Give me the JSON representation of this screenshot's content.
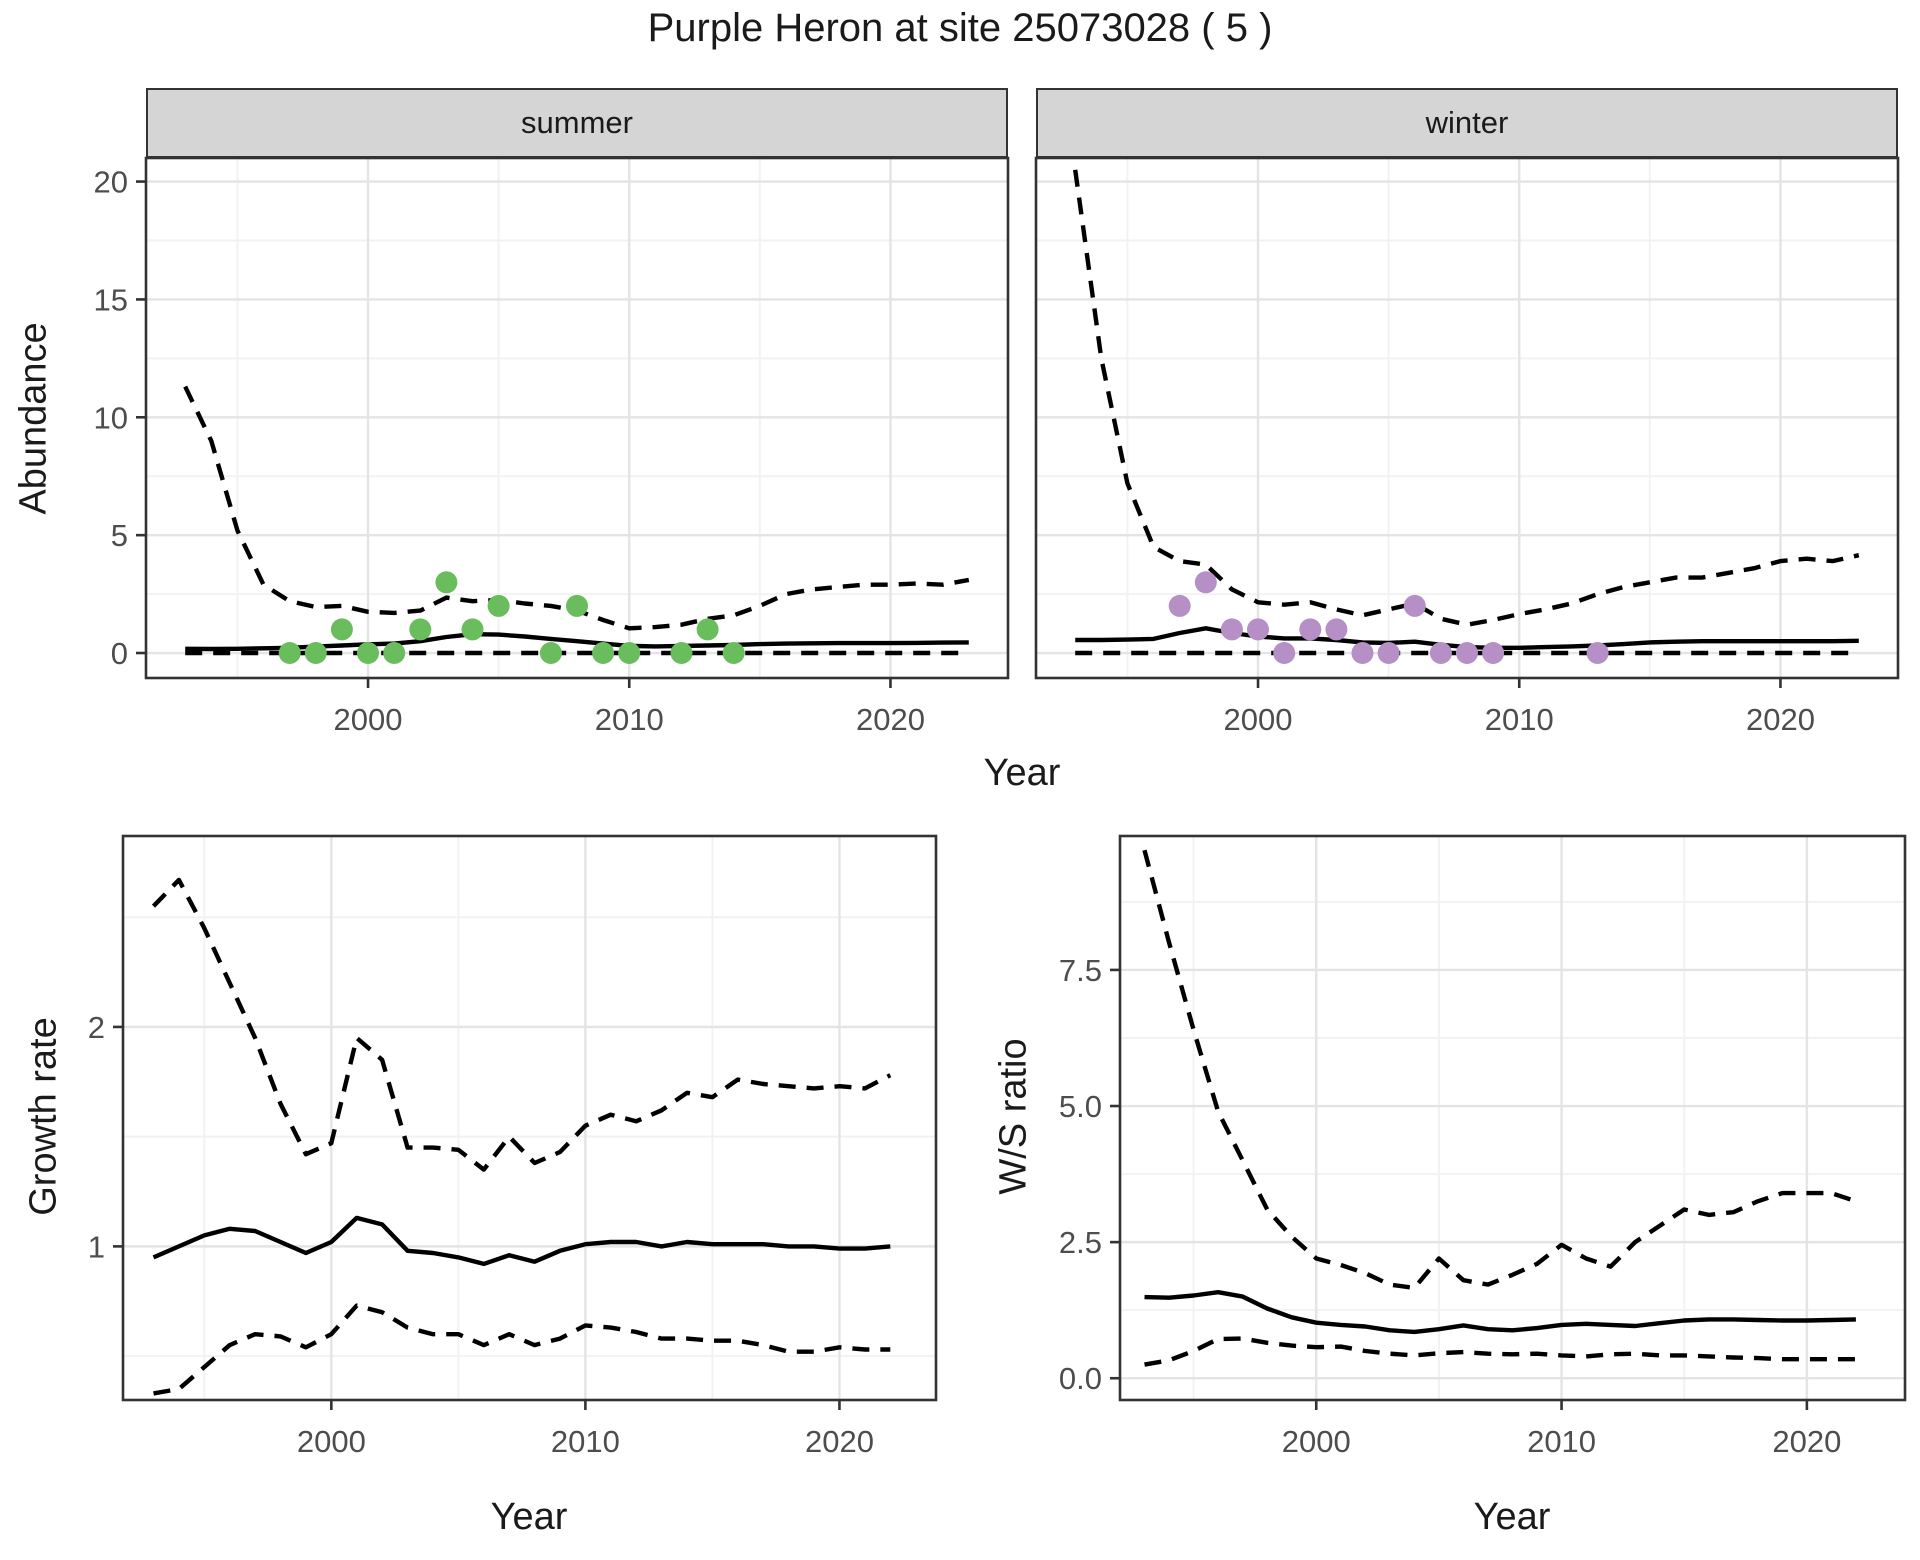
{
  "title": "Purple Heron at site 25073028 ( 5 )",
  "colors": {
    "summer_point": "#6ABD5D",
    "winter_point": "#B58FC6",
    "line": "#000000",
    "panel_border": "#333333",
    "grid_major": "#e4e4e4",
    "grid_minor": "#f2f2f2",
    "tick_mark": "#333333",
    "tick_label": "#4d4d4d",
    "strip_fill": "#d5d5d5",
    "text": "#1a1a1a"
  },
  "chart_data": [
    {
      "type": "line",
      "facet": "summer",
      "xlabel": "Year",
      "ylabel": "Abundance",
      "xlim": [
        1991.5,
        2024.5
      ],
      "ylim": [
        -1.06,
        21.0
      ],
      "x_ticks": {
        "values": [
          2000,
          2010,
          2020
        ],
        "labels": [
          "2000",
          "2010",
          "2020"
        ]
      },
      "y_ticks": {
        "values": [
          0,
          5,
          10,
          15,
          20
        ],
        "labels": [
          "0",
          "5",
          "10",
          "15",
          "20"
        ]
      },
      "x_minor": [
        1995,
        2005,
        2015
      ],
      "y_minor": [
        2.5,
        7.5,
        12.5,
        17.5
      ],
      "x": [
        1993,
        1994,
        1995,
        1996,
        1997,
        1998,
        1999,
        2000,
        2001,
        2002,
        2003,
        2004,
        2005,
        2006,
        2007,
        2008,
        2009,
        2010,
        2011,
        2012,
        2013,
        2014,
        2015,
        2016,
        2017,
        2018,
        2019,
        2020,
        2021,
        2022,
        2023
      ],
      "series": [
        {
          "name": "upper_95ci",
          "style": "dashed",
          "values": [
            11.3,
            9.0,
            5.2,
            2.9,
            2.2,
            1.95,
            2.0,
            1.75,
            1.7,
            1.8,
            2.35,
            2.2,
            2.25,
            2.1,
            2.0,
            1.8,
            1.4,
            1.05,
            1.1,
            1.2,
            1.45,
            1.6,
            2.0,
            2.5,
            2.7,
            2.8,
            2.9,
            2.9,
            2.95,
            2.9,
            3.1
          ]
        },
        {
          "name": "mean",
          "style": "solid",
          "values": [
            0.18,
            0.17,
            0.18,
            0.2,
            0.22,
            0.27,
            0.32,
            0.37,
            0.4,
            0.5,
            0.68,
            0.8,
            0.78,
            0.7,
            0.6,
            0.5,
            0.4,
            0.3,
            0.28,
            0.3,
            0.32,
            0.34,
            0.38,
            0.4,
            0.41,
            0.42,
            0.42,
            0.42,
            0.43,
            0.44,
            0.45
          ]
        },
        {
          "name": "lower_95ci",
          "style": "dashed",
          "values": [
            0,
            0,
            0,
            0,
            0,
            0,
            0,
            0,
            0,
            0,
            0,
            0,
            0,
            0,
            0,
            0,
            0,
            0,
            0,
            0,
            0,
            0,
            0,
            0,
            0,
            0,
            0,
            0,
            0,
            0,
            0
          ]
        }
      ],
      "points": {
        "name": "observed_counts",
        "color": "#6ABD5D",
        "x": [
          1997,
          1998,
          1999,
          2000,
          2001,
          2002,
          2003,
          2004,
          2005,
          2007,
          2008,
          2009,
          2010,
          2012,
          2013,
          2014
        ],
        "y": [
          0,
          0,
          1,
          0,
          0,
          1,
          3,
          1,
          2,
          0,
          2,
          0,
          0,
          0,
          1,
          0
        ]
      }
    },
    {
      "type": "line",
      "facet": "winter",
      "xlabel": "Year",
      "ylabel": "Abundance",
      "xlim": [
        1991.5,
        2024.5
      ],
      "ylim": [
        -1.06,
        21.0
      ],
      "x_ticks": {
        "values": [
          2000,
          2010,
          2020
        ],
        "labels": [
          "2000",
          "2010",
          "2020"
        ]
      },
      "y_ticks": {
        "values": [
          0,
          5,
          10,
          15,
          20
        ],
        "labels": [
          "0",
          "5",
          "10",
          "15",
          "20"
        ]
      },
      "x_minor": [
        1995,
        2005,
        2015
      ],
      "y_minor": [
        2.5,
        7.5,
        12.5,
        17.5
      ],
      "x": [
        1993,
        1994,
        1995,
        1996,
        1997,
        1998,
        1999,
        2000,
        2001,
        2002,
        2003,
        2004,
        2005,
        2006,
        2007,
        2008,
        2009,
        2010,
        2011,
        2012,
        2013,
        2014,
        2015,
        2016,
        2017,
        2018,
        2019,
        2020,
        2021,
        2022,
        2023
      ],
      "series": [
        {
          "name": "upper_95ci",
          "style": "dashed",
          "values": [
            20.5,
            12.5,
            7.2,
            4.5,
            3.9,
            3.75,
            2.7,
            2.15,
            2.05,
            2.15,
            1.85,
            1.6,
            1.85,
            2.1,
            1.45,
            1.2,
            1.4,
            1.65,
            1.85,
            2.1,
            2.5,
            2.8,
            3.0,
            3.2,
            3.2,
            3.4,
            3.6,
            3.9,
            4.0,
            3.9,
            4.15
          ]
        },
        {
          "name": "mean",
          "style": "solid",
          "values": [
            0.55,
            0.55,
            0.57,
            0.6,
            0.85,
            1.05,
            0.85,
            0.7,
            0.62,
            0.62,
            0.55,
            0.45,
            0.43,
            0.48,
            0.35,
            0.25,
            0.22,
            0.22,
            0.25,
            0.28,
            0.32,
            0.38,
            0.45,
            0.48,
            0.5,
            0.5,
            0.5,
            0.5,
            0.5,
            0.5,
            0.52
          ]
        },
        {
          "name": "lower_95ci",
          "style": "dashed",
          "values": [
            0,
            0,
            0,
            0,
            0,
            0,
            0,
            0,
            0,
            0,
            0,
            0,
            0,
            0,
            0,
            0,
            0,
            0,
            0,
            0,
            0,
            0,
            0,
            0,
            0,
            0,
            0,
            0,
            0,
            0,
            0
          ]
        }
      ],
      "points": {
        "name": "observed_counts",
        "color": "#B58FC6",
        "x": [
          1997,
          1998,
          1999,
          2000,
          2001,
          2002,
          2003,
          2004,
          2005,
          2006,
          2007,
          2008,
          2009,
          2013
        ],
        "y": [
          2,
          3,
          1,
          1,
          0,
          1,
          1,
          0,
          0,
          2,
          0,
          0,
          0,
          0
        ]
      }
    },
    {
      "type": "line",
      "facet": "",
      "xlabel": "Year",
      "ylabel": "Growth rate",
      "xlim": [
        1991.8,
        2023.8
      ],
      "ylim": [
        0.3,
        2.87
      ],
      "x_ticks": {
        "values": [
          2000,
          2010,
          2020
        ],
        "labels": [
          "2000",
          "2010",
          "2020"
        ]
      },
      "y_ticks": {
        "values": [
          1,
          2
        ],
        "labels": [
          "1",
          "2"
        ]
      },
      "x_minor": [
        1995,
        2005,
        2015
      ],
      "y_minor": [
        0.5,
        1.5,
        2.5
      ],
      "x": [
        1993,
        1994,
        1995,
        1996,
        1997,
        1998,
        1999,
        2000,
        2001,
        2002,
        2003,
        2004,
        2005,
        2006,
        2007,
        2008,
        2009,
        2010,
        2011,
        2012,
        2013,
        2014,
        2015,
        2016,
        2017,
        2018,
        2019,
        2020,
        2021,
        2022
      ],
      "series": [
        {
          "name": "upper_95ci",
          "style": "dashed",
          "values": [
            2.55,
            2.67,
            2.45,
            2.2,
            1.95,
            1.65,
            1.42,
            1.47,
            1.95,
            1.85,
            1.45,
            1.45,
            1.44,
            1.35,
            1.5,
            1.38,
            1.43,
            1.55,
            1.6,
            1.57,
            1.62,
            1.7,
            1.68,
            1.76,
            1.74,
            1.73,
            1.72,
            1.73,
            1.72,
            1.78
          ]
        },
        {
          "name": "mean",
          "style": "solid",
          "values": [
            0.95,
            1.0,
            1.05,
            1.08,
            1.07,
            1.02,
            0.97,
            1.02,
            1.13,
            1.1,
            0.98,
            0.97,
            0.95,
            0.92,
            0.96,
            0.93,
            0.98,
            1.01,
            1.02,
            1.02,
            1.0,
            1.02,
            1.01,
            1.01,
            1.01,
            1.0,
            1.0,
            0.99,
            0.99,
            1.0
          ]
        },
        {
          "name": "lower_95ci",
          "style": "dashed",
          "values": [
            0.33,
            0.35,
            0.45,
            0.55,
            0.6,
            0.59,
            0.54,
            0.6,
            0.73,
            0.7,
            0.63,
            0.6,
            0.6,
            0.55,
            0.6,
            0.55,
            0.58,
            0.64,
            0.63,
            0.61,
            0.58,
            0.58,
            0.57,
            0.57,
            0.55,
            0.52,
            0.52,
            0.54,
            0.53,
            0.53
          ]
        }
      ],
      "points": null
    },
    {
      "type": "line",
      "facet": "",
      "xlabel": "Year",
      "ylabel": "W/S ratio",
      "xlim": [
        1992,
        2024
      ],
      "ylim": [
        -0.4,
        9.96
      ],
      "x_ticks": {
        "values": [
          2000,
          2010,
          2020
        ],
        "labels": [
          "2000",
          "2010",
          "2020"
        ]
      },
      "y_ticks": {
        "values": [
          0,
          2.5,
          5,
          7.5
        ],
        "labels": [
          "0.0",
          "2.5",
          "5.0",
          "7.5"
        ]
      },
      "x_minor": [
        1995,
        2005,
        2015
      ],
      "y_minor": [
        1.25,
        3.75,
        6.25,
        8.75
      ],
      "x": [
        1993,
        1994,
        1995,
        1996,
        1997,
        1998,
        1999,
        2000,
        2001,
        2002,
        2003,
        2004,
        2005,
        2006,
        2007,
        2008,
        2009,
        2010,
        2011,
        2012,
        2013,
        2014,
        2015,
        2016,
        2017,
        2018,
        2019,
        2020,
        2021,
        2022
      ],
      "series": [
        {
          "name": "upper_95ci",
          "style": "dashed",
          "values": [
            9.7,
            8.0,
            6.4,
            4.9,
            4.0,
            3.1,
            2.6,
            2.2,
            2.08,
            1.93,
            1.72,
            1.66,
            2.2,
            1.8,
            1.72,
            1.9,
            2.1,
            2.45,
            2.2,
            2.05,
            2.5,
            2.8,
            3.1,
            3.0,
            3.05,
            3.25,
            3.4,
            3.4,
            3.4,
            3.25
          ]
        },
        {
          "name": "mean",
          "style": "solid",
          "values": [
            1.49,
            1.48,
            1.52,
            1.58,
            1.5,
            1.28,
            1.12,
            1.02,
            0.98,
            0.95,
            0.88,
            0.85,
            0.9,
            0.97,
            0.9,
            0.88,
            0.92,
            0.98,
            1.0,
            0.98,
            0.96,
            1.01,
            1.06,
            1.08,
            1.08,
            1.07,
            1.06,
            1.06,
            1.07,
            1.08
          ]
        },
        {
          "name": "lower_95ci",
          "style": "dashed",
          "values": [
            0.25,
            0.33,
            0.5,
            0.72,
            0.73,
            0.65,
            0.6,
            0.57,
            0.58,
            0.5,
            0.45,
            0.42,
            0.46,
            0.48,
            0.45,
            0.44,
            0.45,
            0.42,
            0.4,
            0.44,
            0.45,
            0.42,
            0.42,
            0.4,
            0.38,
            0.37,
            0.35,
            0.35,
            0.35,
            0.35
          ]
        }
      ],
      "points": null
    }
  ]
}
